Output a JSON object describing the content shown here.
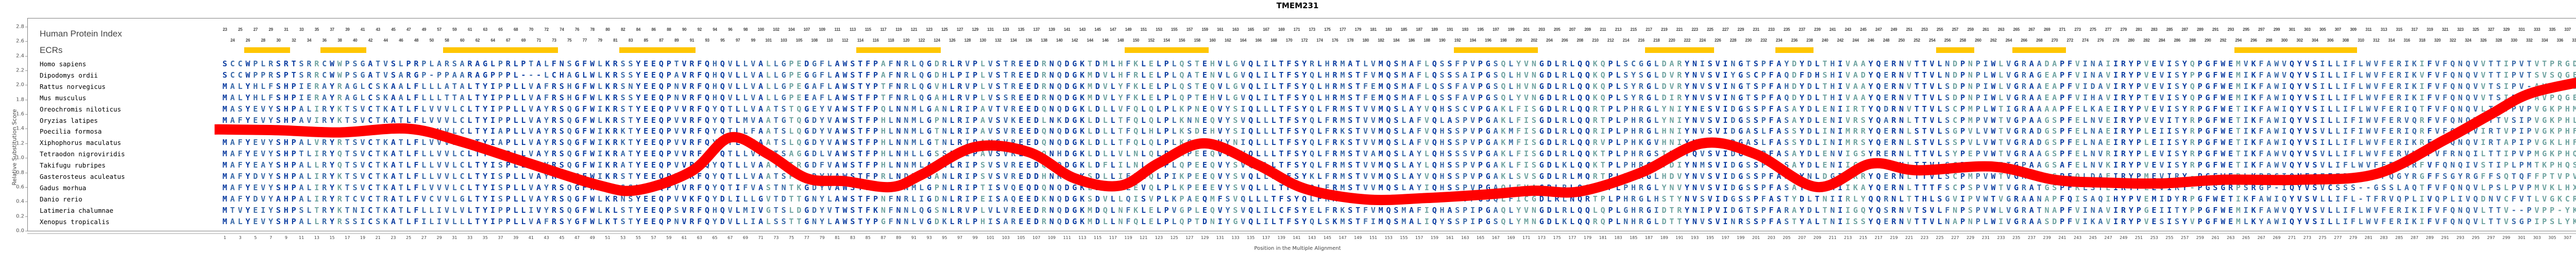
{
  "title": "TMEM231",
  "labels": {
    "human_protein_index": "Human Protein Index",
    "ecrs": "ECRs",
    "y_axis": "Relative Substitution Score",
    "x_axis": "Position in the Multiple Alignment"
  },
  "colors": {
    "curve": "#FF0000",
    "ecr": "#FFC600",
    "residue_conserved": "#0A3CA0",
    "residue_mid": "#3A6AA8",
    "residue_variable": "#6FA3A0"
  },
  "y_ticks": [
    "0.0",
    "0.2",
    "0.4",
    "0.6",
    "0.8",
    "1.0",
    "1.2",
    "1.4",
    "1.6",
    "1.8",
    "2.0",
    "2.2",
    "2.4",
    "2.6",
    "2.8"
  ],
  "species": [
    "Homo sapiens",
    "Dipodomys ordii",
    "Rattus norvegicus",
    "Mus musculus",
    "Oreochromis niloticus",
    "Oryzias latipes",
    "Poecilia formosa",
    "Xiphophorus maculatus",
    "Tetraodon nigroviridis",
    "Takifugu rubripes",
    "Gasterosteus aculeatus",
    "Gadus morhua",
    "Danio rerio",
    "Latimeria chalumnae",
    "Xenopus tropicalis"
  ],
  "sequences": [
    "SCCWPLRSRTSRRCWWPSGATVSLPRPLARSARAGLPRLPTALFNSGFWLKRSSYEEQPTVRFQHQVLLVALLGPEDGFLAWSTFPAFNRLQGDRLRVPLVSTREEDRNQDGKTDMLHFKLELPLQSTEHVLGVQLILTFSYRLHRMATLVMQSMAFLQSSFPVPGSQLYVNGDLRLQQKQPLSCGGLDARYNISVINGTSPFAYDYDLTHIVAAYQERNVTTVLNDPNPIWLVGRAADAPFVINAIIRYPVEVISYQPGFWEMVKFAWVQYVSILLIFLWVFERIKIFVFQNQVVTTIPVTVTPRGDL",
    "SCCWPPRSPTSRRCWWPSGATVSARGP-PPAARAGPPPL---LCHAGLWLKRSSYEEQPAVRFQHQVLLVALLGPEGGFLAWSTFPAFNRLQGDHLPIPLVSTREEDRNQDGKMDVLHFRLELPLQATENVLGVQLILTFSYQLHRMSTFVMQSMAFLQSSSAIPGSQLHVNGDLRLQQKQPLSYSGLDVRYNVSVIYGSCPFAQDFDHSHIVADYQERNVTTVLNDPNPLWLVGRAGEAPFVINAVIRYPVEVISYPPGFWEMIKFAWVQYVSILLIFLWVFERIKVFVFQNQVVTTIPVTSVSQGEV",
    "MALYHLFSHPIERAYRAGLCSKAALFLLLATALTYIPPLLVAFRSHGFWLKRSNYEEQPNVRFQHQVLLVALLGPEGAFLAWSTYPTFNRLQGVHLRVPLVSTREEDRNQDGKMDVLYFKLELPLQSTEQVLGVQLILTFSYQLHRMSTFEMQSMAFLQSSFAVPGSQLHVNGDLRLQQKQPLSYRGLDVRYNVSVINGTSPFAHDYDLTHIVAAYQERNVTTVLSDPNPIWLVGRAAEAPFVIDAVIRYPVEVISYQPGFWEMIKFAWIQYVSILLIFLWVFERIKIFVFQNQVVTSIPV-AVPQGEI",
    "MALYHLFSHPIERAYRAGLCSKAALFLLLTTALTYIPPLLVAFRSHGFWLKRSSYEEQPNVRFQHQVLLVALLGPEEAFLAWSTFPTFNRLQGAHLRVPLVSSREEDRNQDGKMDVLYFKLELPLQPTEHVLGVQLILTFSYQLHRMSTFEMQSMAFLQSSFAVPGSQLYVNGDLRLQQKQPLSYRGLDIRYNVSVINGTSPFAQDYDLTHIVAAYQERNVTTVLSDPNPIWLVGRAAEAPFVIHAVIRYPTEVISYQPGFWEMIKFAWIQYVSILLIFLWVFERIKIFVFQNQVVTSIPV-AVPQGEI",
    "MASYEVYSHPALIRYKTSVCTKATLFLVVVLCLTYIPPLLVAYRSQGFWIKRSTYEEQPVVRFQYQTLLVAATSTQGEYVAWSTFPQLNNMLGANLRIPAVTVREEDQNQDGKLDLLVFQLQLPLKPNEQVYSIQLLLTFSYQLFRMSTVVMQSLAYVQHSSCVPGAKLFISGDLRLQQRTPLPHRGLYNIYNESVIDGSSPFASAYDLENIIRTYQDRNVTTVLSCPMPLWTIGRAAAAPFELKAEIRYPVEVISYRPGFWETIKFAWIQYVSILLIFLWVFERIQTFVFQNQVLTTVPVPVGKPHMS",
    "MAFYEVYSHPAVIRYKTSVCTKATLFLVVVLCLTYIPPLLVAYRSQGFWLKRSTYEEQPVVRFQYQTLMVAATGTQGDYVAWSTFPHLNNMLGPNLRIPAVSVKEEDLNKDGKLDLLTFQLQLPLKNNEQVYSVQLLLTFSYQLFRMSTVVMQSLAFVQLASPVPGAKLFISGDLRLQQRTPLPHRGLYNIYNVSVIDGSSPFASAYDLENIVRSYQARNLTTVLSCPMPVWTVGPAAGSPFELNVEIRYPVEVITYRPGFWETIKFAWIQYVSILLIFIWVFERVQRFVFQNQVLTTVSIPVGKPHLS",
    "MAFYEVYSHPALVRYRTSVCTKATLFLVVVLCLTYIAPLLVAYRSQGFWIKRKTYEEQPVVRFQYQTLLFAATSLQGDYVAWSTFPHLNNMLGTNLRIPAVSVREEDQNQDGKLDLLTFQLHLPLKSDEHVYSIQLLLTFSYQLFRKSTVVMQSLAFVQHSSPVPGAKMFISGDLRLQQRIPLPHRGLHNIYNVSVIDGASLFASSYDLINIMRRYQERNLSTVLSGPVLVWTVGRADGSPFELNAEIRYPLEIISYRPGFWETIKFAWIQYVSVLLIFIWVFERIQRFVFQNQVIRTVPIPVGKPHFS",
    "MAFYEVYSHPALVRYRTSVCTKATLFLVVVLCLTYIAPLLVAYRSQGFWIKRKTYEEQPVVRFQYQTLLFAATSLQGDYVAWSTFPHLNNMLGTNLRIPAVSVREEDQNQDGKLDLLTFQLQLPLKSDEHVYNIQLLLTFSYQLFRKSTVVMQSLAFVQHSSPVPGAKMFISGDLRLQQRVPLPHKGVHNIYNVSVIDGASLFASSYDLINIMRSYQERNLSTVLSSPVLVWTVGRADGSPFELNAEIRYPLEIISYRPGFWETIKFAWIQYVSILLIFLWVFERIKRFVFQNQVIRTAPIPVGKLHFS",
    "MAFYEVYSHPTLIRYQTSVCTKATLFLLVVLCLTYISPLLVAYRSQGFWIKRATYEEQPVVRFQYQTLLVAATSAGGDLVAWSTFPHLNHLLGSSLRIPAVSVREEDQNHDGKLDLLVLNLQLPIRPEEQVVGVQLLLTFSYQLFRMSTVAMQSLAYLQHSSSVPGAKLFISGDLRLQQKTPLPHRGSTTIYQVSVIDGSSPFASAYDLENVIGSYRERNLTTVLSYPEPVWTVGRAAGSPFELNVRIRYPLEVISYRPGFWETIKFAWVQYVSVLLIFLWVFERVKRFVFRNQILTTIPVPMGKPHQS",
    "MAFYEAYSHPALLRYQTSVCTKATLFLLVVLCLTYISPLLVAYRSQGFWIKRATYEEQPVVRFQYQTLLVAATSIRGDFVAWSTFPHLNNMLASNLRIPSVSVREEDQNQDGKLDFLILNLQLPLQPEEQVYSVQLLLTFSYQLFRMSTVVMQSLAYLQHSSPVPGAKLFISGDLKLQQKTPLPHRGVYDIYNMSVIDGSSPFASAYDLENIIGRYRERNLTTVLSCPEPVWIIGPAAGSAFELNVKIRYPVEVISYRPGFWETIKFAWVQYVSVLIFLWVFERVKRFVFQNQIVSTIPLPMTKPHQS",
    "MAFYDVYSHPALIRYKTSVCTKATLFLLVVLCLTYISPLLVAYRSHGFWIKRSTYEEQPDVRFQYQTLLVAATSPRGDYVAWSTFPRLNDMLGANLRIPSVSVREDDHNRDGKSDLLIFRLQLPIKPEEQVYSVQLLLTFSYKLFRMSTVVMQSLAYVQHSSPVPGAKLSVSGDLRLMQRTPLPHRGLHDVYNVSVIDGSSPFASAYNLDGIIRRYQERNLTTVLSCPMPVWTVGRAAGSPFQLDAEIRYPMEVIRY-PGFWEPLKPPGIQNFGFFFPFFGLPQGYRGFFSGYRGFFSQTQFFPTVPVRAGKAHRS",
    "MAFYEVYSHPALIRYKTSVCTKATLFLVVVLCLTYISPLLVAYRSQGFWIKRSSYEEQPVVRFQYQTIFVASTNTKGDYVAWSTFSSFNNMLGPNLRIPTISVQEQDQNQDGKLDRLILEVQLPLKPEEEVYSVQLLLTFSYQLFRMSTVVMQSLAYIQHSSPVPGAQLFVAGDLRLQQRVPLPHRGLYNVYNVSVIDGSSPFASAYNLVNIIKAYQERNLTTTFSCPSPVWTVGRATGSPFKLSTEIRYPLEVIRY-PGSGRPSRGP-IQYVSVCSSS--GSSLAQTFVFQNQVLPSLPVPMVKLHXX",
    "MAFYDVYAHPALIRYRTCVCTRATLFVCVVLGLTYISPLLVAYRSQGFWLKRNSYEEQPVVKFQYDLILLGVTDTTGNYLAWSTFPNFNRLIGDNLRIPEISAQEEDKNQDGKSDVLLQISVPLKPAEQMFSVQLLLTFSYQLFRMSTVVMQTLAFIQHSSPVPGSQLFICGDLRLNQRTPLPHRGLHSTYNVSVIDGSSPFASTYDLTNIIRLYQQRNLTTHLSGVIPVWTVGRAANAPFQISAQIHYPVEMIDYRPGFWETIKFAWIQYVSVLLIFL-TFRVQPLIVQPLIVQDNVCFVTLVGKCRNVYNW",
    "MTVYEIYSHPSLTRYKTNICTKATLFLLIVLVLTYIPPLLIVYRSQGFWLKLSTYEEQPSVRFQHQVLMIVGTSLDGDYVTWSTFKNFNNLQGSNLRVPLVLVREEDRNQDGKMDQLNFKLELPVGPLEQVYSVQLILCFSYELFRKSTFVMQSMAFIQHASPIPGAQLYVNGDLRLQQLQPLGHRGIDTRYNIPVIDGTSPFARAYDLTNIIGQYQSRNVTSVLFNPSPVWLVGRATNAPFVINAVIRYPGEIITYPPGFWEMIKFAWVQYVSVLLIFLWVFERIKIFVFQNQVLTTV--PVPP-YKQ",
    "MALYEVYSHPALLRYRSSICSKATLFILIVLLLTYIPPLLVAFRSYGFWLKTSTYEEQPNVRFQYDVLLIALSSTTGNYLAWSTYPGFNNLVGDKLRLPHISAREEDRNQDGKMDLLNFQLELPLQPTDNIYGVQLILTFSYQLSKMSTFIMQSMALIQYSSPIPGSQLYMNGDLKLQQRQPLNHRGLDTTYNVSVINRSSPFASTYALTNIISSYQERNVTTVLNAPNPLWIVGRAASDPFVIKAVIRYPVESISYVPGFWEMLKYAWIQYVSILLIFLWVFERIKIFVFQNQVLTTVSGPIPSLYKS"
  ],
  "human_protein_index": {
    "row1": [
      "23",
      "25",
      "27",
      "29",
      "31",
      "33",
      "35",
      "37",
      "39",
      "41",
      "43",
      "45",
      "47",
      "49",
      "57",
      "59",
      "61",
      "63",
      "65",
      "68",
      "70",
      "72",
      "74",
      "76",
      "78",
      "80",
      "82",
      "84",
      "86",
      "88",
      "90",
      "92",
      "94",
      "96",
      "98",
      "100",
      "102",
      "104",
      "107",
      "109",
      "111",
      "113",
      "115",
      "117",
      "119",
      "121",
      "123",
      "125",
      "127",
      "129",
      "131",
      "133",
      "135",
      "137",
      "139",
      "141",
      "143",
      "145",
      "147",
      "149",
      "151",
      "153",
      "155",
      "157",
      "159",
      "161",
      "163",
      "165",
      "167",
      "169",
      "171",
      "173",
      "175",
      "177",
      "179",
      "181",
      "183",
      "185",
      "187",
      "189",
      "191",
      "193",
      "195",
      "197",
      "199",
      "201",
      "203",
      "205",
      "207",
      "209",
      "211",
      "213",
      "215",
      "217",
      "219",
      "221",
      "223",
      "225",
      "227",
      "229",
      "231",
      "233",
      "235",
      "237",
      "239",
      "241",
      "243",
      "245",
      "247",
      "249",
      "251",
      "253",
      "255",
      "257",
      "259",
      "261",
      "263",
      "265",
      "267",
      "269",
      "271",
      "273",
      "275",
      "277",
      "279",
      "281",
      "283",
      "285",
      "287",
      "289",
      "291",
      "293",
      "295",
      "297",
      "299",
      "301",
      "303",
      "305",
      "307",
      "309",
      "311",
      "313",
      "315",
      "317",
      "319",
      "321",
      "323",
      "325",
      "327",
      "329",
      "331",
      "333",
      "335",
      "337",
      "339"
    ],
    "row2": [
      "24",
      "26",
      "28",
      "30",
      "32",
      "34",
      "36",
      "38",
      "40",
      "42",
      "44",
      "46",
      "48",
      "50",
      "58",
      "60",
      "62",
      "64",
      "67",
      "69",
      "71",
      "73",
      "75",
      "77",
      "79",
      "81",
      "83",
      "85",
      "87",
      "89",
      "91",
      "93",
      "95",
      "97",
      "99",
      "101",
      "103",
      "105",
      "108",
      "110",
      "112",
      "114",
      "116",
      "118",
      "120",
      "122",
      "124",
      "126",
      "128",
      "130",
      "132",
      "134",
      "136",
      "138",
      "140",
      "142",
      "144",
      "146",
      "148",
      "150",
      "152",
      "154",
      "156",
      "158",
      "160",
      "162",
      "164",
      "166",
      "168",
      "170",
      "172",
      "174",
      "176",
      "178",
      "180",
      "182",
      "184",
      "186",
      "188",
      "190",
      "192",
      "194",
      "196",
      "198",
      "200",
      "202",
      "204",
      "206",
      "208",
      "210",
      "212",
      "214",
      "216",
      "218",
      "220",
      "222",
      "224",
      "226",
      "228",
      "230",
      "232",
      "234",
      "236",
      "238",
      "240",
      "242",
      "244",
      "246",
      "248",
      "250",
      "252",
      "254",
      "256",
      "258",
      "260",
      "262",
      "264",
      "266",
      "268",
      "270",
      "272",
      "274",
      "276",
      "278",
      "280",
      "282",
      "284",
      "286",
      "288",
      "290",
      "292",
      "294",
      "296",
      "298",
      "300",
      "302",
      "304",
      "306",
      "308",
      "310",
      "312",
      "314",
      "316",
      "318",
      "320",
      "322",
      "324",
      "326",
      "328",
      "330",
      "332",
      "334",
      "336",
      "338"
    ]
  },
  "chart_data": {
    "type": "line",
    "title": "TMEM231",
    "xlabel": "Position in the Multiple Alignment",
    "ylabel": "Relative Substitution Score",
    "ylim": [
      0.0,
      2.8
    ],
    "xlim": [
      1,
      309
    ],
    "y_ticks": [
      0.0,
      0.2,
      0.4,
      0.6,
      0.8,
      1.0,
      1.2,
      1.4,
      1.6,
      1.8,
      2.0,
      2.2,
      2.4,
      2.6,
      2.8
    ],
    "x_ticks_odd_1_to_309": true,
    "grid": false,
    "legend": "none",
    "series": [
      {
        "name": "Relative Substitution Score (smoothed)",
        "color": "#FF0000",
        "x": [
          1,
          8,
          16,
          25,
          32,
          40,
          50,
          55,
          62,
          67,
          72,
          77,
          82,
          88,
          92,
          99,
          106,
          112,
          118,
          123,
          129,
          136,
          142,
          150,
          158,
          166,
          172,
          178,
          186,
          194,
          201,
          209,
          216,
          222,
          232,
          240,
          247,
          254,
          262,
          272,
          282,
          291,
          297,
          302,
          309
        ],
        "values": [
          1.39,
          1.38,
          1.35,
          1.4,
          1.22,
          0.95,
          0.62,
          0.56,
          0.82,
          1.28,
          1.05,
          0.72,
          0.68,
          0.6,
          0.77,
          1.15,
          1.08,
          0.72,
          0.62,
          0.93,
          1.2,
          0.9,
          0.58,
          0.43,
          0.45,
          0.5,
          0.55,
          0.54,
          0.8,
          1.2,
          1.05,
          0.6,
          0.92,
          0.83,
          0.88,
          0.7,
          0.66,
          0.65,
          0.7,
          0.7,
          0.78,
          1.25,
          1.6,
          1.88,
          2.05
        ]
      }
    ],
    "ecr_regions_alignment_cols": [
      [
        4,
        9
      ],
      [
        14,
        19
      ],
      [
        30,
        44
      ],
      [
        53,
        62
      ],
      [
        84,
        94
      ],
      [
        119,
        129
      ],
      [
        162,
        172
      ],
      [
        187,
        195
      ],
      [
        204,
        208
      ],
      [
        225,
        229
      ],
      [
        235,
        241
      ],
      [
        264,
        279
      ]
    ],
    "annotations": {
      "rows": 15,
      "alignment_columns": 309
    }
  }
}
